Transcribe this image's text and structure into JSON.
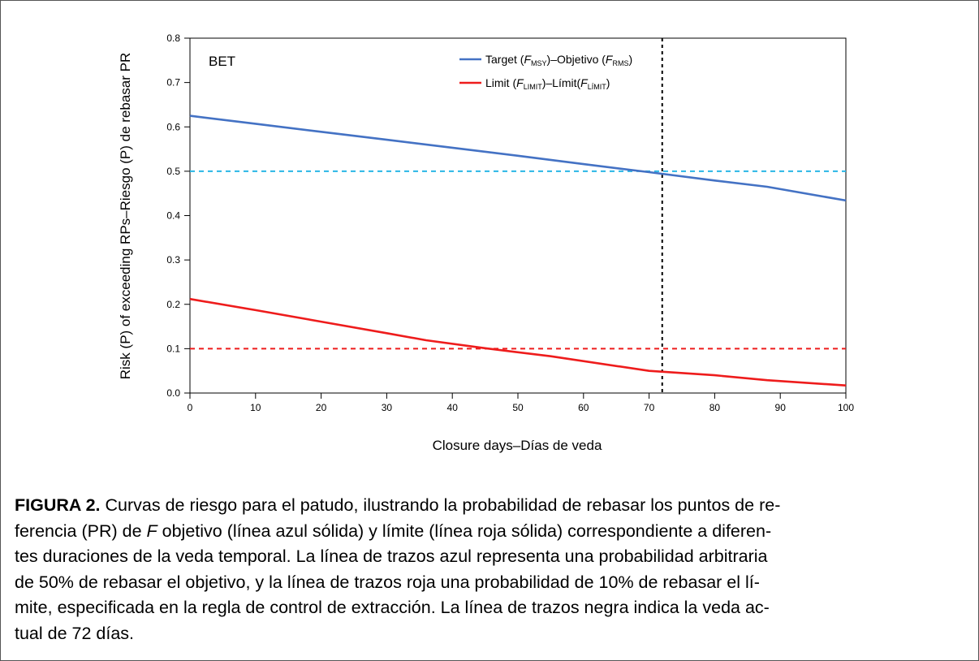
{
  "chart_data": {
    "type": "line",
    "panel_label": "BET",
    "xlabel": "Closure days–Días de veda",
    "ylabel": "Risk (P) of exceeding RPs–Riesgo (P) de rebasar PR",
    "xlim": [
      0,
      100
    ],
    "ylim": [
      0,
      0.8
    ],
    "x_ticks": [
      "0",
      "10",
      "20",
      "30",
      "40",
      "50",
      "60",
      "70",
      "80",
      "90",
      "100"
    ],
    "y_ticks": [
      "0.0",
      "0.1",
      "0.2",
      "0.3",
      "0.4",
      "0.5",
      "0.6",
      "0.7",
      "0.8"
    ],
    "legend_position": "top-center",
    "grid": false,
    "series": [
      {
        "name": "Target (FMSY)–Objetivo (FRMS)",
        "legend": {
          "pre": "Target (",
          "f1": "F",
          "s1": "MSY",
          "mid": ")–Objetivo (",
          "f2": "F",
          "s2": "RMS",
          "post": ")"
        },
        "color": "#4472c4",
        "style": "solid",
        "x": [
          0,
          10,
          20,
          30,
          40,
          50,
          60,
          70,
          80,
          88,
          100
        ],
        "y": [
          0.625,
          0.607,
          0.589,
          0.571,
          0.553,
          0.535,
          0.516,
          0.498,
          0.479,
          0.465,
          0.434
        ]
      },
      {
        "name": "Limit (FLIMIT)–Límit(FLÍMIT)",
        "legend": {
          "pre": "Limit (",
          "f1": "F",
          "s1": "LIMIT",
          "mid": ")–Límit(",
          "f2": "F",
          "s2": "LÍMIT",
          "post": ")"
        },
        "color": "#ee1c1c",
        "style": "solid",
        "x": [
          0,
          10,
          20,
          30,
          36,
          45,
          55,
          70,
          80,
          88,
          100
        ],
        "y": [
          0.212,
          0.187,
          0.161,
          0.135,
          0.119,
          0.101,
          0.083,
          0.05,
          0.04,
          0.029,
          0.017
        ]
      }
    ],
    "reference_lines": [
      {
        "orientation": "horizontal",
        "value": 0.5,
        "color": "#29b6e6",
        "style": "dashed"
      },
      {
        "orientation": "horizontal",
        "value": 0.1,
        "color": "#ee1c1c",
        "style": "dashed"
      },
      {
        "orientation": "vertical",
        "value": 72,
        "color": "#000000",
        "style": "dashed"
      }
    ]
  },
  "caption": {
    "label": "FIGURA 2.",
    "part1": " Curvas de riesgo para el patudo, ilustrando la probabilidad de rebasar los puntos de re-",
    "part2": "ferencia (PR) de ",
    "f_italic": "F",
    "part3": " objetivo (línea azul sólida) y límite (línea roja sólida) correspondiente a diferen-",
    "part4": "tes duraciones de la veda temporal. La línea de trazos azul representa una probabilidad arbitraria",
    "part5": "de 50% de rebasar el objetivo, y la línea de trazos roja una probabilidad de 10% de rebasar el lí-",
    "part6": "mite, especificada en la regla de control de extracción. La línea de trazos negra indica la veda ac-",
    "part7": "tual de 72 días."
  }
}
